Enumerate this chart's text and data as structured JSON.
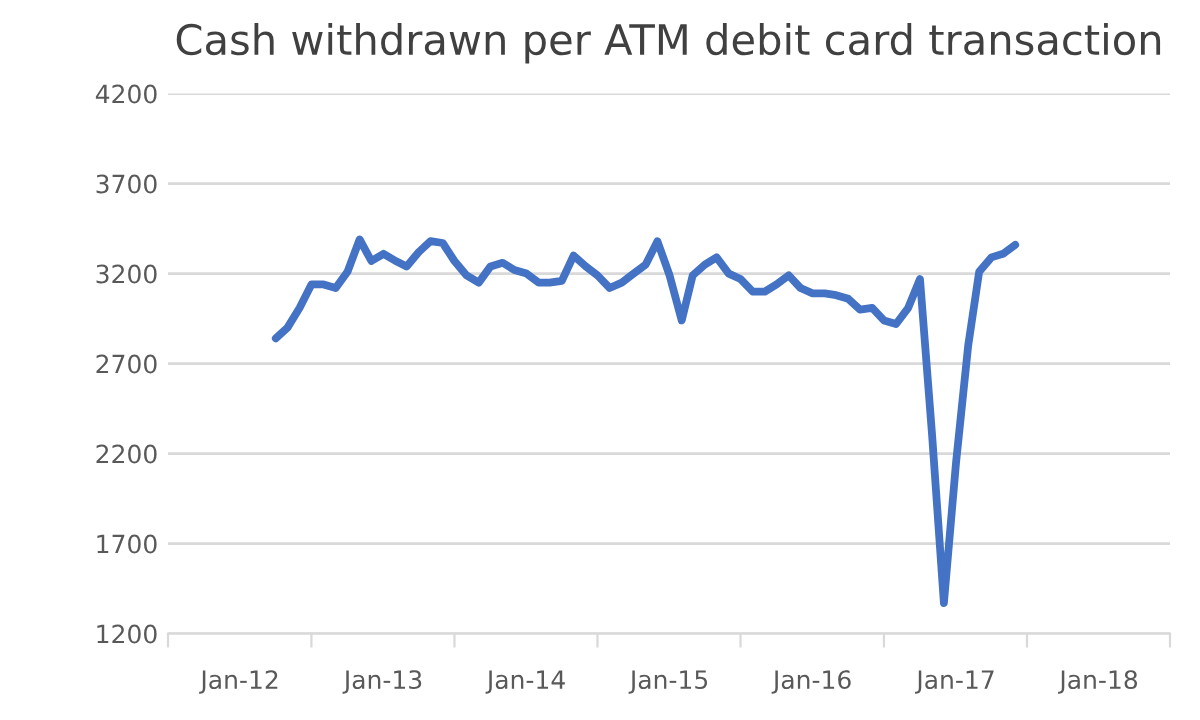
{
  "chart_data": {
    "type": "line",
    "title": "Cash withdrawn per ATM debit card transaction",
    "x": [
      "2012-04",
      "2012-05",
      "2012-06",
      "2012-07",
      "2012-08",
      "2012-09",
      "2012-10",
      "2012-11",
      "2012-12",
      "2013-01",
      "2013-02",
      "2013-03",
      "2013-04",
      "2013-05",
      "2013-06",
      "2013-07",
      "2013-08",
      "2013-09",
      "2013-10",
      "2013-11",
      "2013-12",
      "2014-01",
      "2014-02",
      "2014-03",
      "2014-04",
      "2014-05",
      "2014-06",
      "2014-07",
      "2014-08",
      "2014-09",
      "2014-10",
      "2014-11",
      "2014-12",
      "2015-01",
      "2015-02",
      "2015-03",
      "2015-04",
      "2015-05",
      "2015-06",
      "2015-07",
      "2015-08",
      "2015-09",
      "2015-10",
      "2015-11",
      "2015-12",
      "2016-01",
      "2016-02",
      "2016-03",
      "2016-04",
      "2016-05",
      "2016-06",
      "2016-07",
      "2016-08",
      "2016-09",
      "2016-10",
      "2016-11",
      "2016-12",
      "2017-01",
      "2017-02",
      "2017-03",
      "2017-04",
      "2017-05",
      "2017-06"
    ],
    "series": [
      {
        "color": "#4472c4",
        "values": [
          2840,
          2900,
          3010,
          3140,
          3140,
          3120,
          3210,
          3390,
          3270,
          3310,
          3270,
          3240,
          3320,
          3380,
          3370,
          3270,
          3190,
          3150,
          3240,
          3260,
          3220,
          3200,
          3150,
          3150,
          3160,
          3300,
          3240,
          3190,
          3120,
          3150,
          3200,
          3250,
          3380,
          3190,
          2940,
          3190,
          3250,
          3290,
          3200,
          3170,
          3100,
          3100,
          3140,
          3190,
          3120,
          3090,
          3090,
          3080,
          3060,
          3000,
          3010,
          2940,
          2920,
          3010,
          3170,
          2300,
          1370,
          2150,
          2800,
          3210,
          3290,
          3310,
          3360
        ]
      }
    ],
    "xlim": [
      "2011-07",
      "2018-07"
    ],
    "xticks": [
      {
        "value": "2011-07",
        "label": null
      },
      {
        "value": "2012-01",
        "label": "Jan-12"
      },
      {
        "value": "2012-07",
        "label": null
      },
      {
        "value": "2013-01",
        "label": "Jan-13"
      },
      {
        "value": "2013-07",
        "label": null
      },
      {
        "value": "2014-01",
        "label": "Jan-14"
      },
      {
        "value": "2014-07",
        "label": null
      },
      {
        "value": "2015-01",
        "label": "Jan-15"
      },
      {
        "value": "2015-07",
        "label": null
      },
      {
        "value": "2016-01",
        "label": "Jan-16"
      },
      {
        "value": "2016-07",
        "label": null
      },
      {
        "value": "2017-01",
        "label": "Jan-17"
      },
      {
        "value": "2017-07",
        "label": null
      },
      {
        "value": "2018-01",
        "label": "Jan-18"
      },
      {
        "value": "2018-07",
        "label": null
      }
    ],
    "ylim": [
      1200,
      4200
    ],
    "yticks": [
      1200,
      1700,
      2200,
      2700,
      3200,
      3700,
      4200
    ],
    "grid": "y",
    "legend": false,
    "marker": "none",
    "line_style": "solid"
  }
}
